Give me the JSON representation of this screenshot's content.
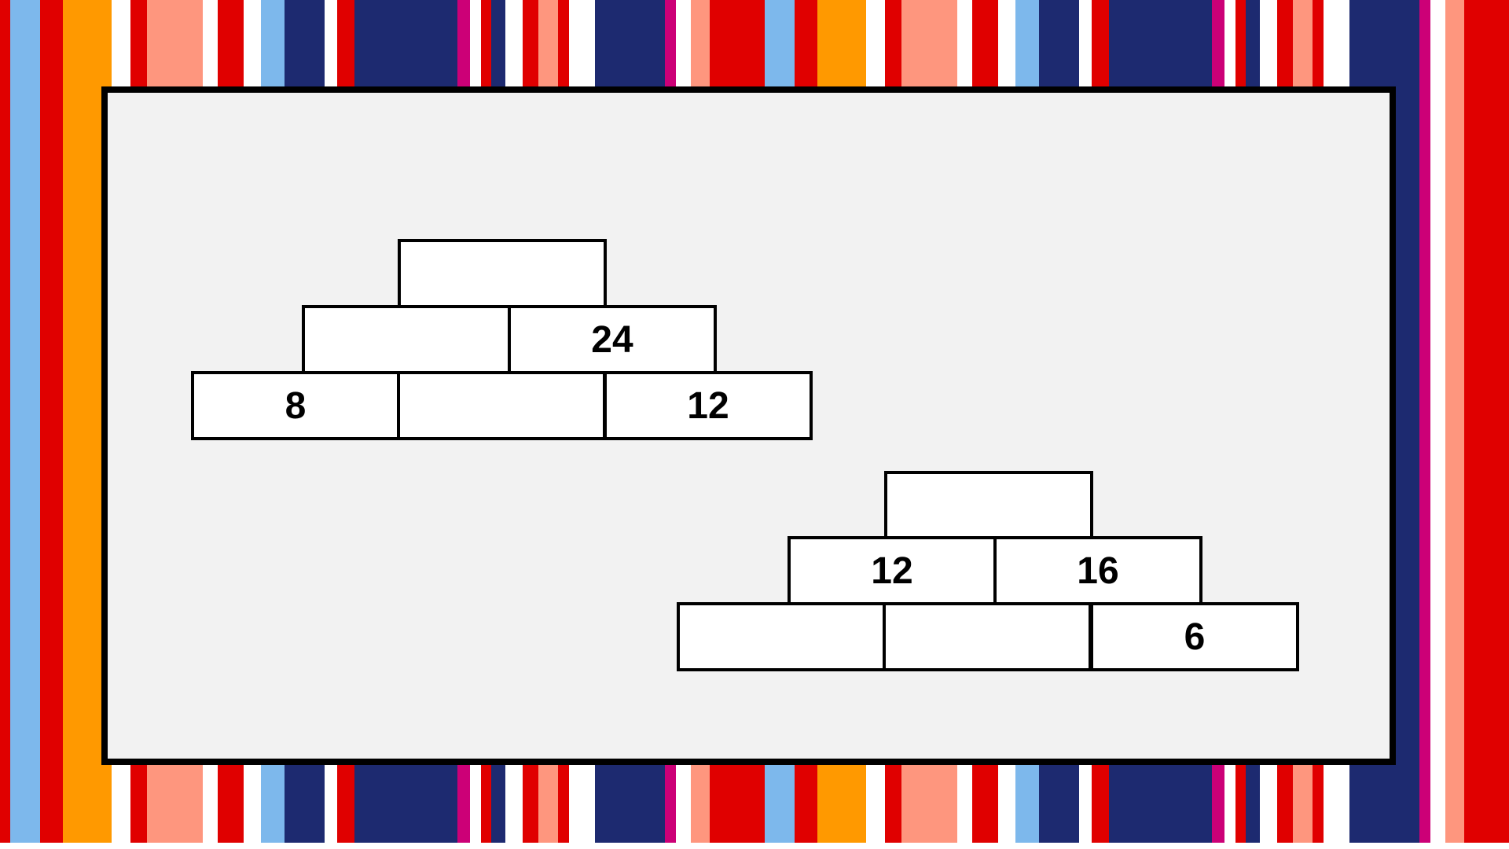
{
  "colors": {
    "red": "#e00000",
    "light_blue": "#7db8ec",
    "orange": "#ff9900",
    "salmon": "#fe967e",
    "navy": "#1d2a70",
    "magenta": "#cc0077",
    "board": "#f2f2f2"
  },
  "pyramid1": {
    "top": [
      ""
    ],
    "middle": [
      "",
      "24"
    ],
    "bottom": [
      "8",
      "",
      "12"
    ]
  },
  "pyramid2": {
    "top": [
      ""
    ],
    "middle": [
      "12",
      "16"
    ],
    "bottom": [
      "",
      "",
      "6"
    ]
  }
}
